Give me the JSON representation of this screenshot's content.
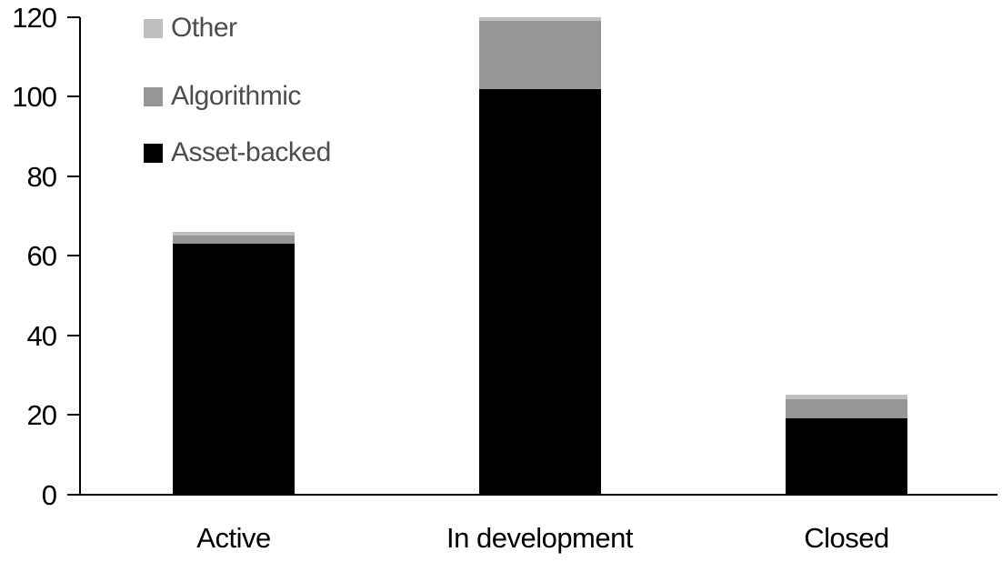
{
  "chart_data": {
    "type": "bar",
    "stacked": true,
    "title": "",
    "xlabel": "",
    "ylabel": "",
    "categories": [
      "Active",
      "In development",
      "Closed"
    ],
    "series": [
      {
        "name": "Other",
        "color": "#BFBFBF",
        "values": [
          1,
          1,
          1
        ]
      },
      {
        "name": "Algorithmic",
        "color": "#969696",
        "values": [
          2,
          17,
          5
        ]
      },
      {
        "name": "Asset-backed",
        "color": "#000000",
        "values": [
          63,
          102,
          19
        ]
      }
    ],
    "ylim": [
      0,
      120
    ],
    "yticks": [
      0,
      20,
      40,
      60,
      80,
      100,
      120
    ],
    "grid": false,
    "legend_position": "top-left",
    "axis_color": "#000000",
    "tick_label_color": "#000000",
    "category_label_color": "#000000",
    "legend_text_color": "#4D4D4D",
    "background_color": "#FFFFFF"
  }
}
